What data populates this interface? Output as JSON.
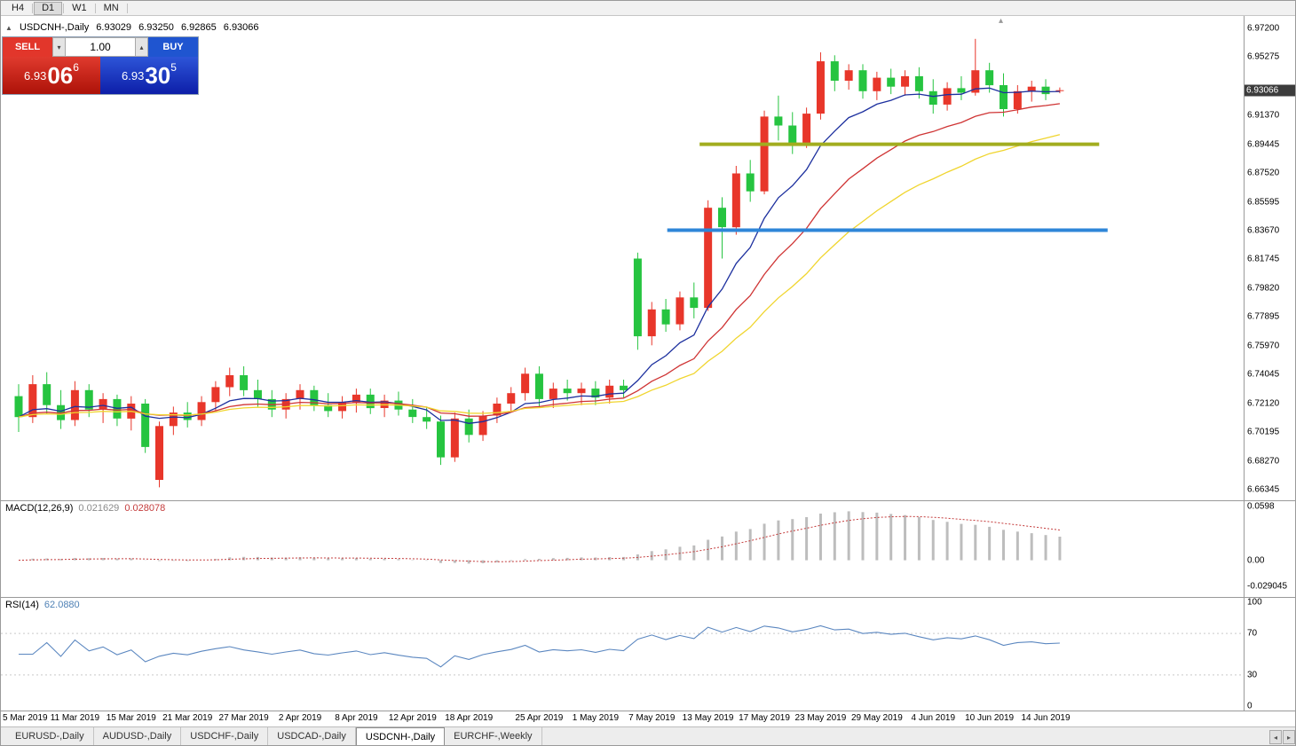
{
  "toolbar": {
    "timeframes": [
      "H4",
      "D1",
      "W1",
      "MN"
    ],
    "active": "D1"
  },
  "chart": {
    "symbol_title": "USDCNH-,Daily",
    "ohlc": {
      "open": "6.93029",
      "high": "6.93250",
      "low": "6.92865",
      "close": "6.93066"
    },
    "current_price": "6.93066"
  },
  "trade_panel": {
    "sell_label": "SELL",
    "buy_label": "BUY",
    "volume": "1.00",
    "sell_price": {
      "base": "6.93",
      "big": "06",
      "sup": "6"
    },
    "buy_price": {
      "base": "6.93",
      "big": "30",
      "sup": "5"
    }
  },
  "price_axis": {
    "labels": [
      "6.97200",
      "6.95275",
      "6.91370",
      "6.89445",
      "6.87520",
      "6.85595",
      "6.83670",
      "6.81745",
      "6.79820",
      "6.77895",
      "6.75970",
      "6.74045",
      "6.72120",
      "6.70195",
      "6.68270",
      "6.66345"
    ]
  },
  "macd_axis": {
    "labels": [
      "0.0598",
      "0.00",
      "-0.029045"
    ]
  },
  "rsi_axis": {
    "labels": [
      "100",
      "70",
      "30",
      "0"
    ]
  },
  "indicators": {
    "macd_label": "MACD(12,26,9)",
    "macd_value": "0.021629",
    "macd_signal": "0.028078",
    "rsi_label": "RSI(14)",
    "rsi_value": "62.0880"
  },
  "time_axis": {
    "labels": [
      [
        "5 Mar 2019",
        0
      ],
      [
        "11 Mar 2019",
        4
      ],
      [
        "15 Mar 2019",
        8
      ],
      [
        "21 Mar 2019",
        12
      ],
      [
        "27 Mar 2019",
        16
      ],
      [
        "2 Apr 2019",
        20
      ],
      [
        "8 Apr 2019",
        24
      ],
      [
        "12 Apr 2019",
        28
      ],
      [
        "18 Apr 2019",
        32
      ],
      [
        "25 Apr 2019",
        37
      ],
      [
        "1 May 2019",
        41
      ],
      [
        "7 May 2019",
        45
      ],
      [
        "13 May 2019",
        49
      ],
      [
        "17 May 2019",
        53
      ],
      [
        "23 May 2019",
        57
      ],
      [
        "29 May 2019",
        61
      ],
      [
        "4 Jun 2019",
        65
      ],
      [
        "10 Jun 2019",
        69
      ],
      [
        "14 Jun 2019",
        73
      ]
    ]
  },
  "tabs": {
    "items": [
      "EURUSD-,Daily",
      "AUDUSD-,Daily",
      "USDCHF-,Daily",
      "USDCAD-,Daily",
      "USDCNH-,Daily",
      "EURCHF-,Weekly"
    ],
    "active": "USDCNH-,Daily"
  },
  "chart_data": {
    "type": "candlestick",
    "title": "USDCNH-,Daily",
    "symbol": "USDCNH",
    "timeframe": "Daily",
    "price_range": [
      6.66345,
      6.972
    ],
    "bull_color": "#e8362a",
    "bear_color": "#26c440",
    "candles": [
      [
        "5 Mar",
        6.726,
        6.734,
        6.702,
        6.712
      ],
      [
        "6 Mar",
        6.712,
        6.74,
        6.708,
        6.734
      ],
      [
        "7 Mar",
        6.734,
        6.742,
        6.714,
        6.72
      ],
      [
        "8 Mar",
        6.72,
        6.73,
        6.704,
        6.71
      ],
      [
        "11 Mar",
        6.71,
        6.736,
        6.706,
        6.73
      ],
      [
        "12 Mar",
        6.73,
        6.734,
        6.712,
        6.717
      ],
      [
        "13 Mar",
        6.717,
        6.728,
        6.708,
        6.724
      ],
      [
        "14 Mar",
        6.724,
        6.727,
        6.706,
        6.711
      ],
      [
        "15 Mar",
        6.711,
        6.726,
        6.703,
        6.721
      ],
      [
        "18 Mar",
        6.721,
        6.724,
        6.688,
        6.692
      ],
      [
        "19 Mar",
        6.67,
        6.709,
        6.665,
        6.706
      ],
      [
        "20 Mar",
        6.706,
        6.719,
        6.7,
        6.715
      ],
      [
        "21 Mar",
        6.715,
        6.722,
        6.705,
        6.71
      ],
      [
        "22 Mar",
        6.71,
        6.726,
        6.706,
        6.722
      ],
      [
        "25 Mar",
        6.722,
        6.736,
        6.716,
        6.732
      ],
      [
        "26 Mar",
        6.732,
        6.745,
        6.726,
        6.74
      ],
      [
        "27 Mar",
        6.74,
        6.746,
        6.726,
        6.73
      ],
      [
        "28 Mar",
        6.73,
        6.737,
        6.719,
        6.724
      ],
      [
        "29 Mar",
        6.724,
        6.73,
        6.712,
        6.717
      ],
      [
        "1 Apr",
        6.717,
        6.728,
        6.711,
        6.724
      ],
      [
        "2 Apr",
        6.724,
        6.734,
        6.717,
        6.73
      ],
      [
        "3 Apr",
        6.73,
        6.733,
        6.716,
        6.72
      ],
      [
        "4 Apr",
        6.72,
        6.728,
        6.712,
        6.716
      ],
      [
        "5 Apr",
        6.716,
        6.726,
        6.711,
        6.722
      ],
      [
        "8 Apr",
        6.722,
        6.731,
        6.715,
        6.727
      ],
      [
        "9 Apr",
        6.727,
        6.731,
        6.714,
        6.718
      ],
      [
        "10 Apr",
        6.718,
        6.727,
        6.712,
        6.723
      ],
      [
        "11 Apr",
        6.723,
        6.729,
        6.713,
        6.717
      ],
      [
        "12 Apr",
        6.717,
        6.724,
        6.708,
        6.712
      ],
      [
        "15 Apr",
        6.712,
        6.719,
        6.704,
        6.709
      ],
      [
        "16 Apr",
        6.709,
        6.713,
        6.68,
        6.685
      ],
      [
        "17 Apr",
        6.685,
        6.715,
        6.682,
        6.711
      ],
      [
        "18 Apr",
        6.711,
        6.717,
        6.695,
        6.7
      ],
      [
        "19 Apr",
        6.7,
        6.716,
        6.696,
        6.713
      ],
      [
        "22 Apr",
        6.713,
        6.725,
        6.708,
        6.721
      ],
      [
        "23 Apr",
        6.721,
        6.732,
        6.716,
        6.728
      ],
      [
        "24 Apr",
        6.728,
        6.745,
        6.723,
        6.741
      ],
      [
        "25 Apr",
        6.741,
        6.746,
        6.719,
        6.724
      ],
      [
        "26 Apr",
        6.724,
        6.735,
        6.718,
        6.731
      ],
      [
        "29 Apr",
        6.731,
        6.737,
        6.723,
        6.728
      ],
      [
        "30 Apr",
        6.728,
        6.735,
        6.72,
        6.731
      ],
      [
        "1 May",
        6.731,
        6.736,
        6.72,
        6.725
      ],
      [
        "2 May",
        6.725,
        6.737,
        6.721,
        6.733
      ],
      [
        "3 May",
        6.733,
        6.737,
        6.725,
        6.73
      ],
      [
        "6 May",
        6.818,
        6.822,
        6.757,
        6.766
      ],
      [
        "7 May",
        6.766,
        6.789,
        6.76,
        6.784
      ],
      [
        "8 May",
        6.784,
        6.791,
        6.769,
        6.774
      ],
      [
        "9 May",
        6.774,
        6.796,
        6.77,
        6.792
      ],
      [
        "10 May",
        6.792,
        6.802,
        6.778,
        6.785
      ],
      [
        "13 May",
        6.785,
        6.857,
        6.783,
        6.852
      ],
      [
        "14 May",
        6.852,
        6.859,
        6.818,
        6.839
      ],
      [
        "15 May",
        6.839,
        6.88,
        6.834,
        6.875
      ],
      [
        "16 May",
        6.875,
        6.884,
        6.856,
        6.863
      ],
      [
        "17 May",
        6.863,
        6.917,
        6.861,
        6.913
      ],
      [
        "20 May",
        6.913,
        6.927,
        6.897,
        6.907
      ],
      [
        "21 May",
        6.907,
        6.916,
        6.888,
        6.895
      ],
      [
        "22 May",
        6.895,
        6.919,
        6.892,
        6.915
      ],
      [
        "23 May",
        6.915,
        6.956,
        6.911,
        6.95
      ],
      [
        "24 May",
        6.95,
        6.954,
        6.93,
        6.937
      ],
      [
        "27 May",
        6.937,
        6.948,
        6.931,
        6.944
      ],
      [
        "28 May",
        6.944,
        6.948,
        6.925,
        6.93
      ],
      [
        "29 May",
        6.93,
        6.943,
        6.924,
        6.939
      ],
      [
        "30 May",
        6.939,
        6.945,
        6.928,
        6.933
      ],
      [
        "31 May",
        6.933,
        6.944,
        6.927,
        6.94
      ],
      [
        "3 Jun",
        6.94,
        6.946,
        6.925,
        6.93
      ],
      [
        "4 Jun",
        6.93,
        6.938,
        6.915,
        6.921
      ],
      [
        "5 Jun",
        6.921,
        6.936,
        6.917,
        6.932
      ],
      [
        "6 Jun",
        6.932,
        6.94,
        6.924,
        6.929
      ],
      [
        "7 Jun",
        6.929,
        6.965,
        6.927,
        6.944
      ],
      [
        "10 Jun",
        6.944,
        6.949,
        6.929,
        6.934
      ],
      [
        "11 Jun",
        6.934,
        6.942,
        6.913,
        6.918
      ],
      [
        "12 Jun",
        6.918,
        6.934,
        6.915,
        6.93
      ],
      [
        "13 Jun",
        6.93,
        6.937,
        6.923,
        6.933
      ],
      [
        "14 Jun",
        6.933,
        6.938,
        6.924,
        6.928
      ],
      [
        "17 Jun",
        6.93029,
        6.9325,
        6.92865,
        6.93066
      ]
    ],
    "moving_averages": [
      {
        "type": "ema",
        "period": 8,
        "color": "#1c2f9e"
      },
      {
        "type": "ema",
        "period": 16,
        "color": "#cf3434"
      },
      {
        "type": "ema",
        "period": 26,
        "color": "#f0d52e"
      }
    ],
    "trendlines": [
      {
        "price": 6.8945,
        "i1": 48.4,
        "i2": 76.8,
        "color": "#a2ad1f",
        "width": 4
      },
      {
        "price": 6.837,
        "i1": 46.1,
        "i2": 77.4,
        "color": "#2e86d8",
        "width": 4
      }
    ],
    "macd": {
      "params": "12,26,9",
      "last": 0.021629,
      "last_signal": 0.028078,
      "range": [
        -0.029045,
        0.0598
      ],
      "histogram_color": "#bdbdbd",
      "signal_color": "#c43c3c"
    },
    "rsi": {
      "period": 14,
      "last": 62.088,
      "levels": [
        30,
        70
      ],
      "range": [
        0,
        100
      ],
      "line_color": "#5b87c0"
    }
  }
}
